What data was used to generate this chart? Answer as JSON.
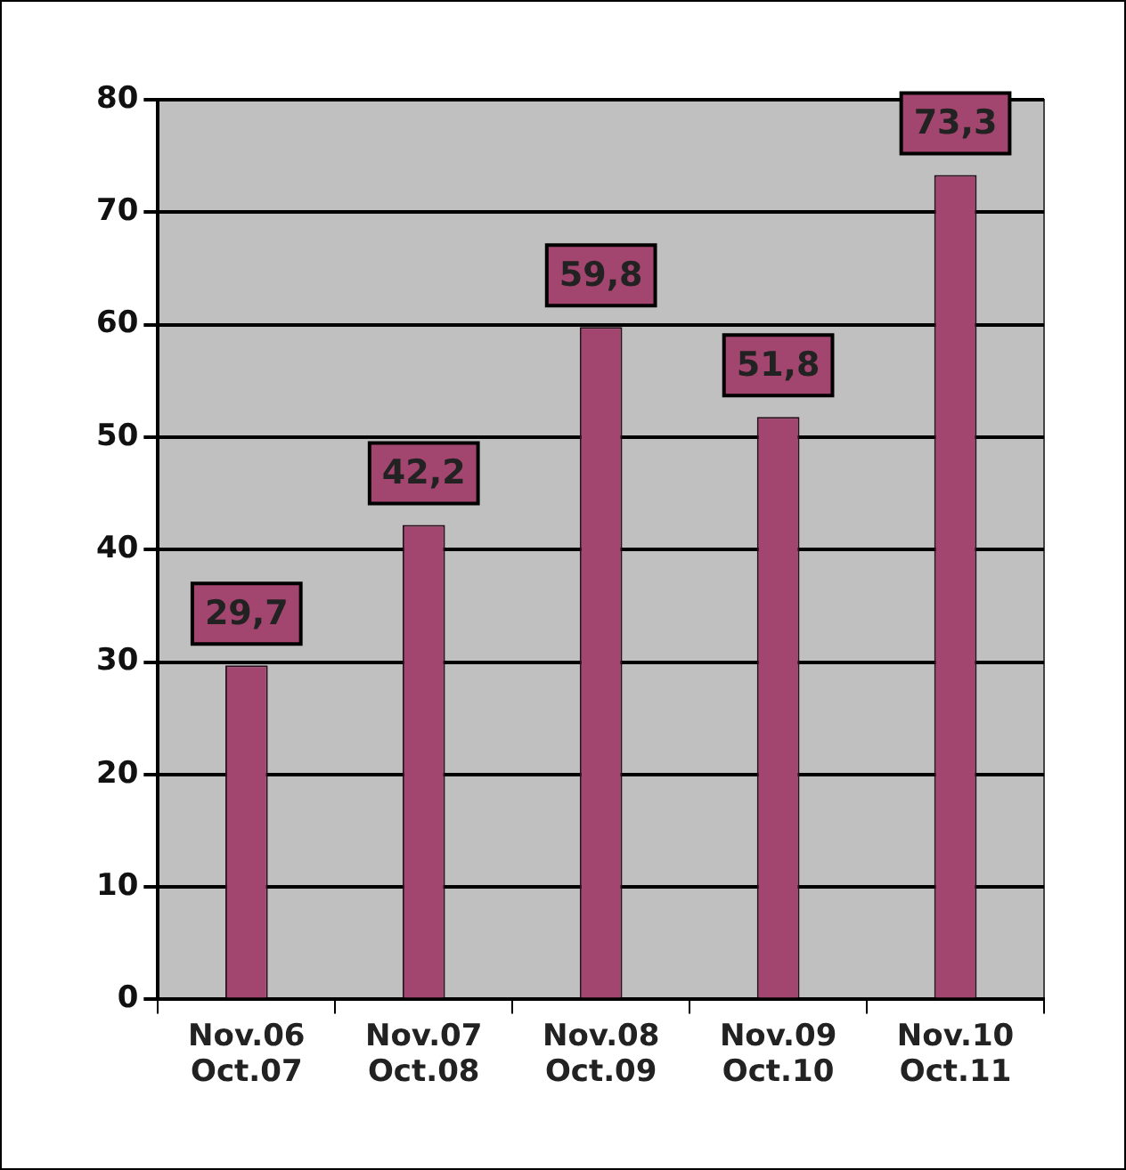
{
  "chart_data": {
    "type": "bar",
    "categories": [
      "Nov.06\nOct.07",
      "Nov.07\nOct.08",
      "Nov.08\nOct.09",
      "Nov.09\nOct.10",
      "Nov.10\nOct.11"
    ],
    "values": [
      29.7,
      42.2,
      59.8,
      51.8,
      73.3
    ],
    "value_labels": [
      "29,7",
      "42,2",
      "59,8",
      "51,8",
      "73,3"
    ],
    "color": "#a3466f",
    "ylim": [
      0,
      80
    ],
    "yticks": [
      0,
      10,
      20,
      30,
      40,
      50,
      60,
      70,
      80
    ],
    "grid": "y",
    "legend": false
  }
}
